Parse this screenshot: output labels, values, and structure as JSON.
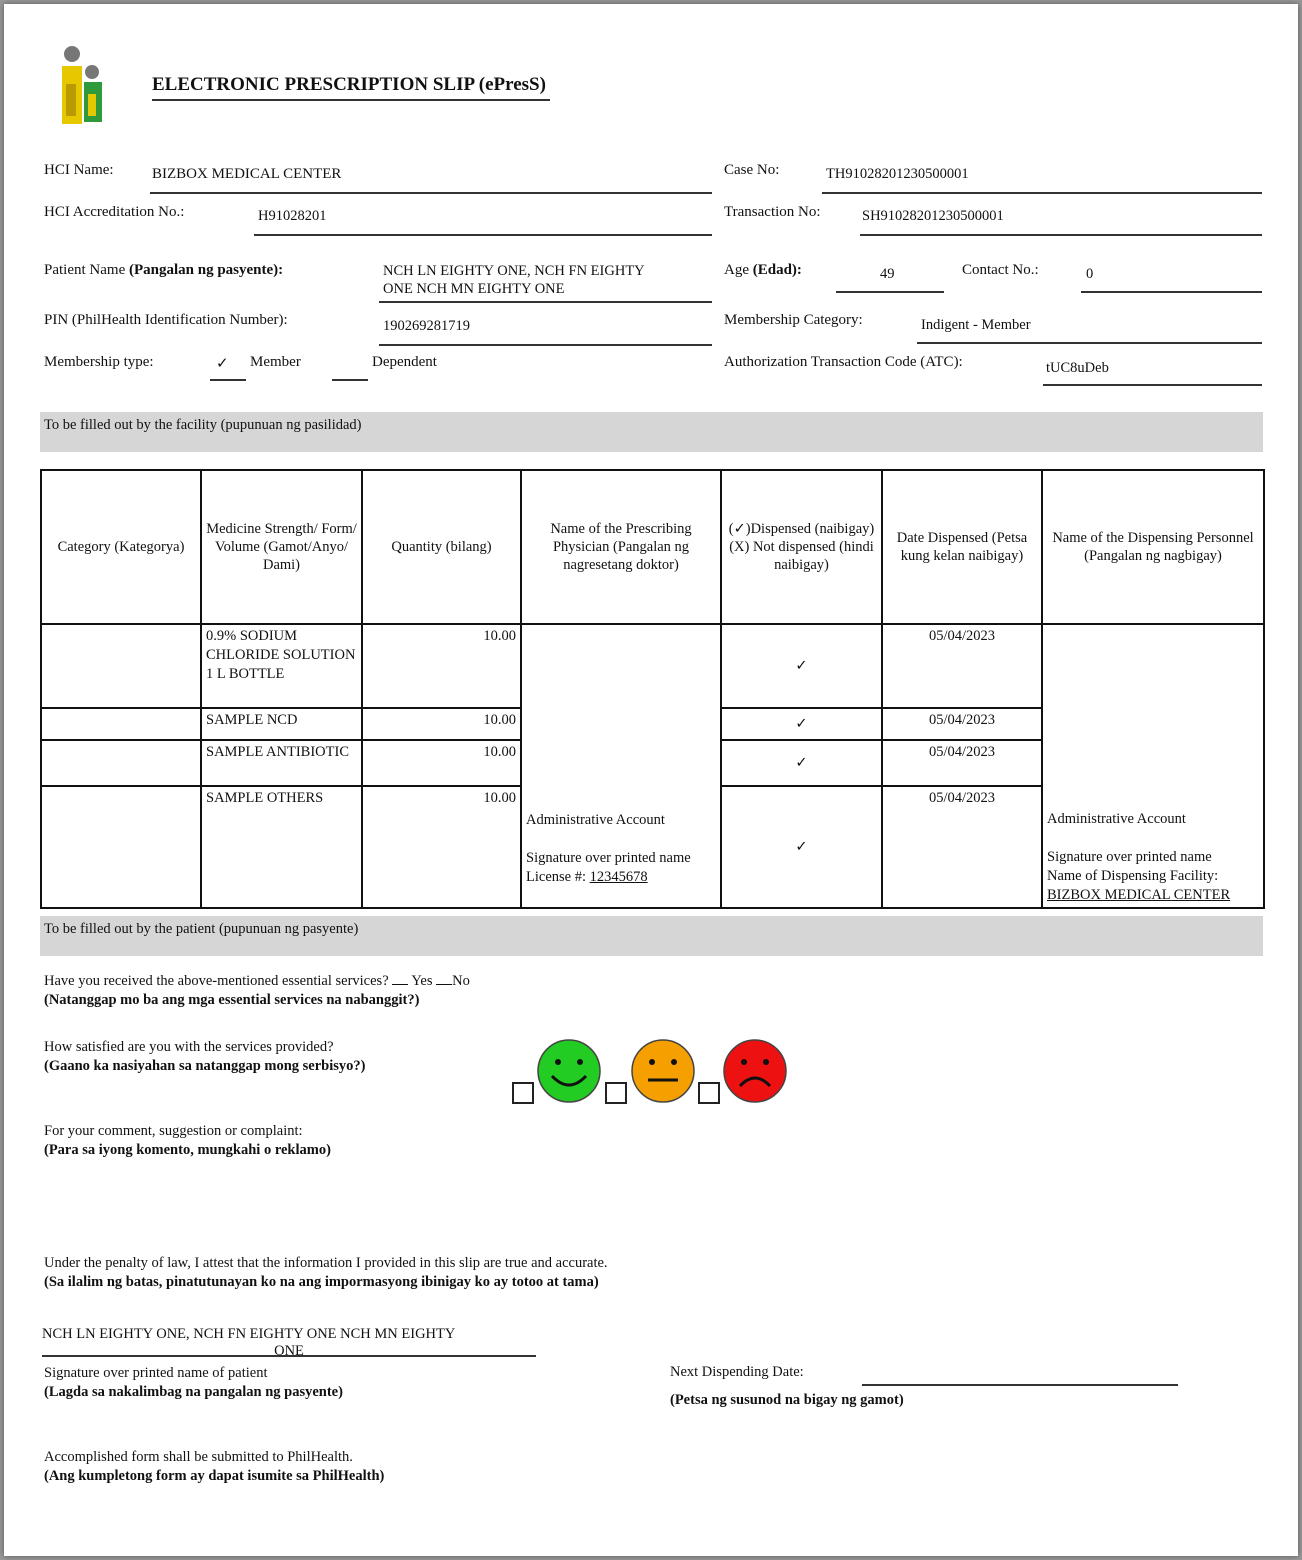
{
  "title": "ELECTRONIC PRESCRIPTION SLIP (ePresS)",
  "fields": {
    "hci_name_label": "HCI Name:",
    "hci_name": "BIZBOX MEDICAL CENTER",
    "case_no_label": "Case No:",
    "case_no": "TH91028201230500001",
    "accreditation_label": "HCI Accreditation No.:",
    "accreditation": "H91028201",
    "transaction_label": "Transaction No:",
    "transaction": "SH91028201230500001",
    "patient_label": "Patient Name",
    "patient_label_bold": "(Pangalan ng pasyente):",
    "patient_name_1": "NCH LN EIGHTY ONE, NCH FN EIGHTY",
    "patient_name_2": "ONE NCH MN EIGHTY ONE",
    "age_label": "Age",
    "age_label_bold": "(Edad):",
    "age": "49",
    "contact_label": "Contact No.:",
    "contact": "0",
    "pin_label": "PIN (PhilHealth Identification Number):",
    "pin": "190269281719",
    "category_label": "Membership Category:",
    "category": "Indigent - Member",
    "type_label": "Membership type:",
    "type_check": "✓",
    "type_member": "Member",
    "type_dependent": "Dependent",
    "atc_label": "Authorization Transaction Code (ATC):",
    "atc": "tUC8uDeb"
  },
  "facility_band": "To be filled out by the facility (pupunuan ng pasilidad)",
  "table": {
    "headers": [
      "Category (Kategorya)",
      "Medicine Strength/ Form/ Volume (Gamot/Anyo/ Dami)",
      "Quantity (bilang)",
      "Name of the Prescribing Physician (Pangalan ng nagresetang doktor)",
      "(✓)Dispensed (naibigay) (X) Not dispensed (hindi naibigay)",
      "Date Dispensed (Petsa kung kelan naibigay)",
      "Name of the Dispensing Personnel (Pangalan ng nagbigay)"
    ],
    "rows": [
      {
        "category": "",
        "medicine": "0.9% SODIUM CHLORIDE SOLUTION 1 L BOTTLE",
        "quantity": "10.00",
        "dispensed": "✓",
        "date": "05/04/2023"
      },
      {
        "category": "",
        "medicine": "SAMPLE NCD",
        "quantity": "10.00",
        "dispensed": "✓",
        "date": "05/04/2023"
      },
      {
        "category": "",
        "medicine": "SAMPLE ANTIBIOTIC",
        "quantity": "10.00",
        "dispensed": "✓",
        "date": "05/04/2023"
      },
      {
        "category": "",
        "medicine": "SAMPLE OTHERS",
        "quantity": "10.00",
        "dispensed": "✓",
        "date": "05/04/2023"
      }
    ],
    "physician": {
      "name": "Administrative Account",
      "sig": "Signature over printed name",
      "license_label": "License #:",
      "license": "12345678"
    },
    "personnel": {
      "name": "Administrative Account",
      "sig": "Signature over printed name",
      "facility_label": "Name of Dispensing Facility:",
      "facility": "BIZBOX MEDICAL CENTER"
    }
  },
  "patient_band": "To be filled out by the patient (pupunuan ng pasyente)",
  "q1": {
    "text": "Have you received the above-mentioned essential services?",
    "yes": "Yes",
    "no": "No",
    "tl": "(Natanggap mo ba ang mga essential services na nabanggit?)"
  },
  "q2": {
    "text": "How satisfied are you with the services provided?",
    "tl": "(Gaano ka nasiyahan sa natanggap mong serbisyo?)",
    "colors": {
      "happy": "#22cc22",
      "neutral": "#f5a000",
      "sad": "#ee1111"
    }
  },
  "q3": {
    "text": "For your comment, suggestion or complaint:",
    "tl": "(Para sa iyong komento, mungkahi o reklamo)"
  },
  "attest": {
    "text": "Under the penalty of law, I attest that the information I provided in this slip are true and accurate.",
    "tl": "(Sa ilalim ng batas, pinatutunayan ko na ang impormasyong ibinigay ko ay totoo at tama)"
  },
  "signature": {
    "name_1": "NCH LN EIGHTY ONE, NCH FN EIGHTY ONE NCH MN EIGHTY",
    "name_2": "ONE",
    "label": "Signature over printed name of patient",
    "tl": "(Lagda sa nakalimbag na pangalan ng pasyente)"
  },
  "next": {
    "label": "Next Dispending Date:",
    "tl": "(Petsa ng susunod na bigay ng gamot)"
  },
  "footer": {
    "text": "Accomplished form shall be submitted to PhilHealth.",
    "tl": "(Ang kumpletong form ay dapat isumite sa PhilHealth)"
  }
}
